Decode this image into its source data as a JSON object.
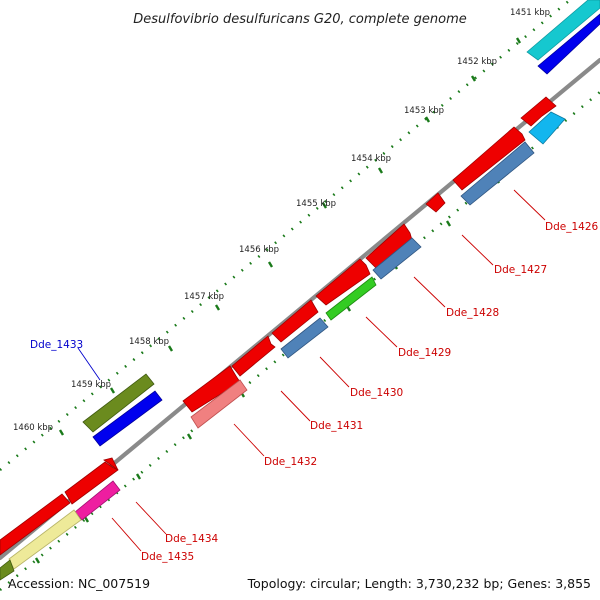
{
  "title": "Desulfovibrio desulfuricans G20, complete genome",
  "footer": {
    "accession": "Accession: NC_007519",
    "summary": "Topology: circular; Length: 3,730,232 bp; Genes: 3,855"
  },
  "ticks": [
    "1451 kbp",
    "1452 kbp",
    "1453 kbp",
    "1454 kbp",
    "1455 kbp",
    "1456 kbp",
    "1457 kbp",
    "1458 kbp",
    "1459 kbp",
    "1460 kbp"
  ],
  "colors": {
    "red": "#ee0000",
    "steelblue": "#4f82b8",
    "blue": "#0000ee",
    "cyan": "#15c8cf",
    "skyblue": "#12b6ee",
    "olive": "#6b8b1e",
    "green": "#33cc22",
    "pink": "#f08080",
    "magenta": "#ee1ea0",
    "khaki": "#eeea99",
    "backbone": "#888888",
    "tickdots": "#1a7a1a"
  },
  "gene_labels": [
    {
      "text": "Dde_1426",
      "color": "#cc0000"
    },
    {
      "text": "Dde_1427",
      "color": "#cc0000"
    },
    {
      "text": "Dde_1428",
      "color": "#cc0000"
    },
    {
      "text": "Dde_1429",
      "color": "#cc0000"
    },
    {
      "text": "Dde_1430",
      "color": "#cc0000"
    },
    {
      "text": "Dde_1431",
      "color": "#cc0000"
    },
    {
      "text": "Dde_1432",
      "color": "#cc0000"
    },
    {
      "text": "Dde_1433",
      "color": "#0000cc"
    },
    {
      "text": "Dde_1434",
      "color": "#cc0000"
    },
    {
      "text": "Dde_1435",
      "color": "#cc0000"
    }
  ]
}
